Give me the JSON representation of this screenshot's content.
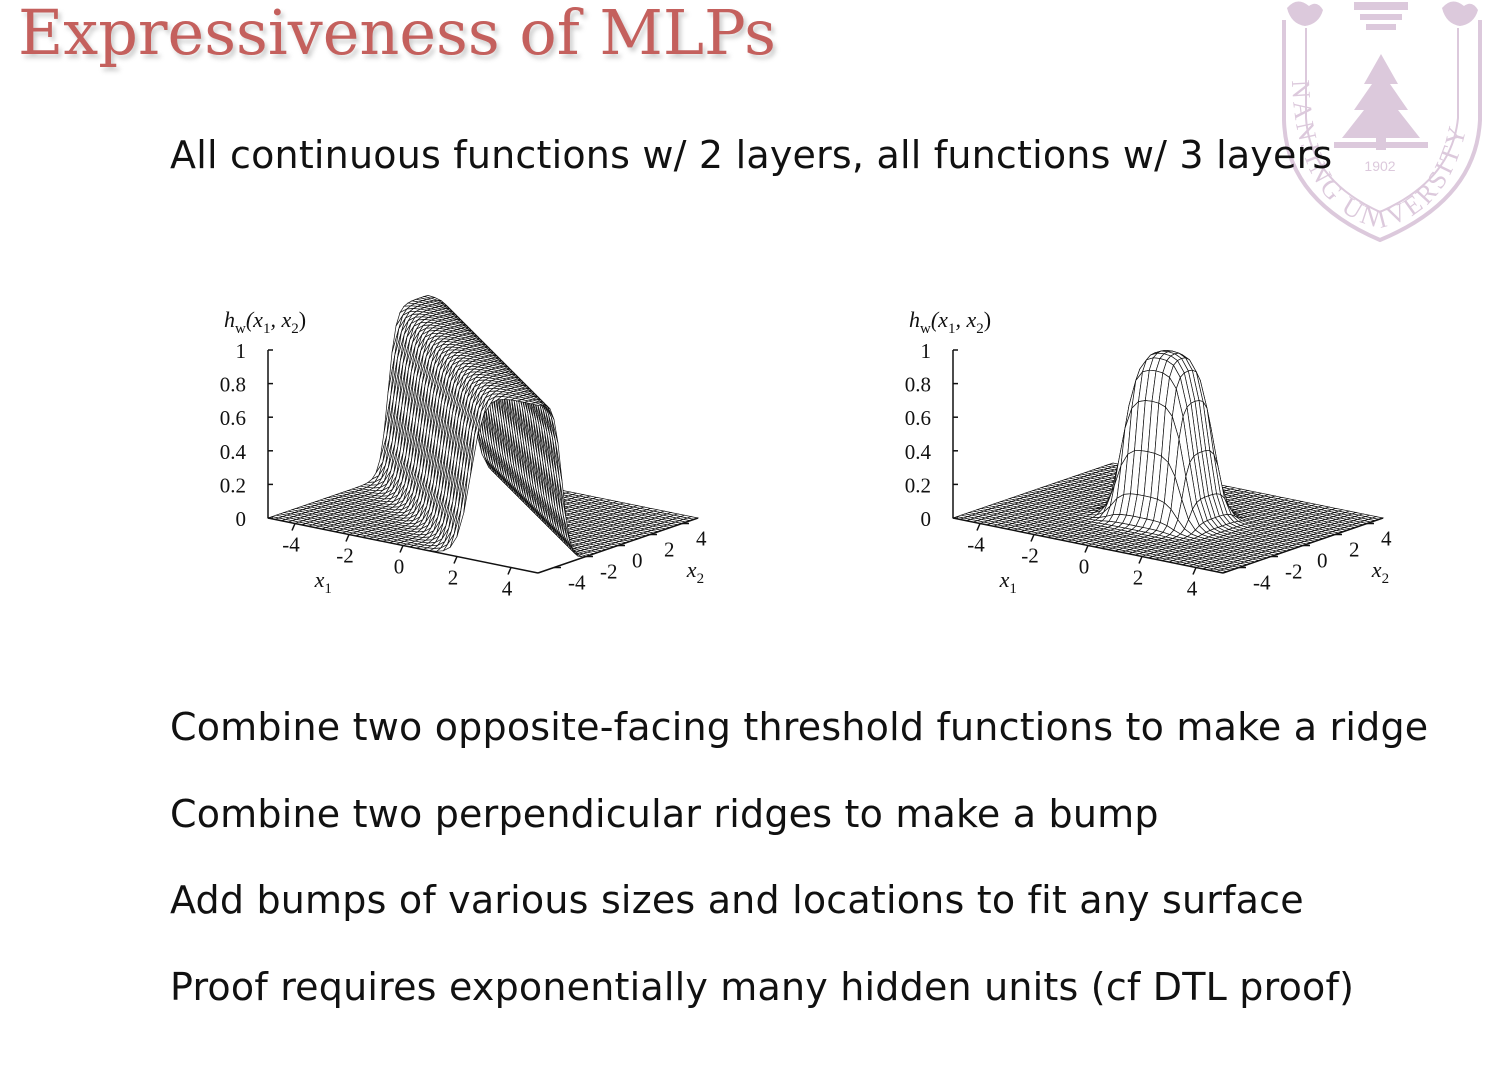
{
  "slide": {
    "title": "Expressiveness of MLPs",
    "subtitle": "All continuous functions w/ 2 layers, all functions w/ 3 layers",
    "bullets": [
      "Combine two opposite-facing threshold functions to make a ridge",
      "Combine two perpendicular ridges to make a bump",
      "Add bumps of various sizes and locations to fit any surface",
      "Proof requires exponentially many hidden units (cf DTL proof)"
    ]
  },
  "logo": {
    "year": "1902",
    "ring_text": "NANJING UNIVERSITY",
    "color": "#dcc9dc"
  },
  "plots": [
    {
      "type": "surface",
      "function": "ridge",
      "zlabel": {
        "base": "h",
        "sub": "w",
        "args": "(x",
        "s1": "1",
        "mid": ", x",
        "s2": "2",
        "end": ")"
      },
      "xlabel": {
        "base": "x",
        "sub": "1"
      },
      "ylabel": {
        "base": "x",
        "sub": "2"
      },
      "zticks": [
        "1",
        "0.8",
        "0.6",
        "0.4",
        "0.2",
        "0"
      ],
      "xticks": [
        "-4",
        "-2",
        "0",
        "2",
        "4"
      ],
      "yticks": [
        "-4",
        "-2",
        "0",
        "2",
        "4"
      ]
    },
    {
      "type": "surface",
      "function": "bump",
      "zlabel": {
        "base": "h",
        "sub": "w",
        "args": "(x",
        "s1": "1",
        "mid": ", x",
        "s2": "2",
        "end": ")"
      },
      "xlabel": {
        "base": "x",
        "sub": "1"
      },
      "ylabel": {
        "base": "x",
        "sub": "2"
      },
      "zticks": [
        "1",
        "0.8",
        "0.6",
        "0.4",
        "0.2",
        "0"
      ],
      "xticks": [
        "-4",
        "-2",
        "0",
        "2",
        "4"
      ],
      "yticks": [
        "-4",
        "-2",
        "0",
        "2",
        "4"
      ]
    }
  ]
}
